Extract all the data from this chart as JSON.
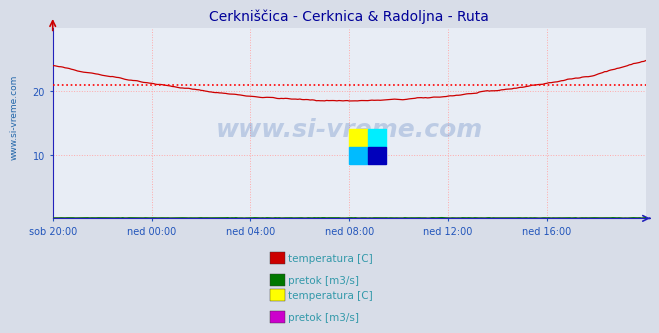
{
  "title": "Cerkniščica - Cerknica & Radoljna - Ruta",
  "title_color": "#000099",
  "bg_color": "#d8dde8",
  "plot_bg_color": "#e8edf5",
  "grid_color": "#ffaaaa",
  "axis_color": "#2222bb",
  "tick_label_color": "#2255bb",
  "ylabel_text": "www.si-vreme.com",
  "ylabel_color": "#2266aa",
  "watermark": "www.si-vreme.com",
  "xlabels": [
    "sob 20:00",
    "ned 00:00",
    "ned 04:00",
    "ned 08:00",
    "ned 12:00",
    "ned 16:00"
  ],
  "xticks_pos": [
    0,
    48,
    96,
    144,
    192,
    240
  ],
  "ylim": [
    0,
    30
  ],
  "yticks": [
    10,
    20
  ],
  "avg_line_y": 21.0,
  "avg_line_color": "#ff0000",
  "n_points": 289,
  "temp1_color": "#cc0000",
  "pretok1_color": "#007700",
  "pretok2_color": "#cc00cc",
  "legend_text_color": "#3399aa",
  "legend1": [
    "temperatura [C]",
    "pretok [m3/s]"
  ],
  "legend2": [
    "temperatura [C]",
    "pretok [m3/s]"
  ],
  "legend_colors1": [
    "#cc0000",
    "#007700"
  ],
  "legend_colors2": [
    "#ffff00",
    "#cc00cc"
  ],
  "logo_colors": [
    "#ffff00",
    "#00bbff",
    "#00eeff",
    "#0000bb"
  ]
}
